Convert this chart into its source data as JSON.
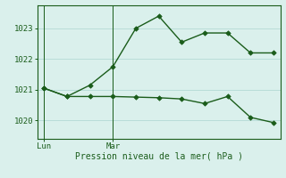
{
  "bg_color": "#daf0ec",
  "grid_color": "#b8ddd8",
  "line_color": "#1a5c1a",
  "line1_x": [
    0,
    1,
    2,
    3,
    4,
    5,
    6,
    7,
    8,
    9,
    10
  ],
  "line1_y": [
    1021.05,
    1020.78,
    1021.15,
    1021.75,
    1023.0,
    1023.4,
    1022.55,
    1022.85,
    1022.85,
    1022.2,
    1022.2
  ],
  "line2_x": [
    0,
    1,
    2,
    3,
    4,
    5,
    6,
    7,
    8,
    9,
    10
  ],
  "line2_y": [
    1021.05,
    1020.78,
    1020.78,
    1020.78,
    1020.76,
    1020.74,
    1020.7,
    1020.55,
    1020.78,
    1020.1,
    1019.93
  ],
  "marker": "D",
  "marker_size": 2.8,
  "line_width": 1.0,
  "xtick_positions": [
    0,
    3
  ],
  "xtick_labels": [
    "Lun",
    "Mar"
  ],
  "ytick_positions": [
    1020,
    1021,
    1022,
    1023
  ],
  "ytick_labels": [
    "1020",
    "1021",
    "1022",
    "1023"
  ],
  "ylim": [
    1019.4,
    1023.75
  ],
  "xlim": [
    -0.3,
    10.3
  ],
  "xlabel": "Pression niveau de la mer( hPa )",
  "vline_x": [
    0,
    3
  ]
}
